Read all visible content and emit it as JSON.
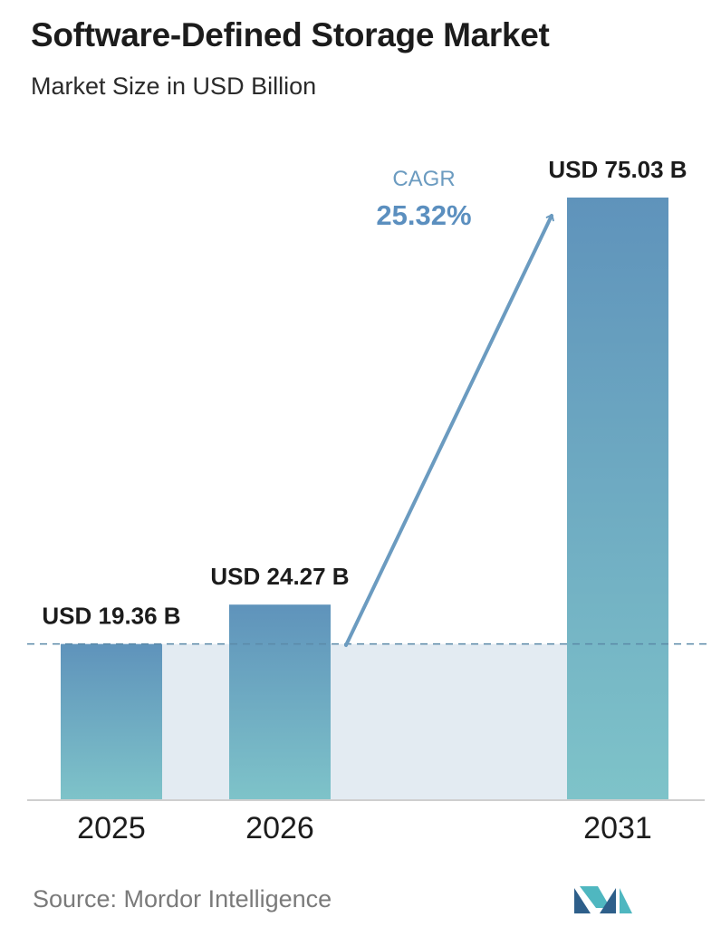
{
  "header": {
    "title": "Software-Defined Storage Market",
    "subtitle": "Market Size in USD Billion"
  },
  "chart_data": {
    "type": "bar",
    "categories": [
      "2025",
      "2026",
      "2031"
    ],
    "values": [
      19.36,
      24.27,
      75.03
    ],
    "value_labels": [
      "USD 19.36 B",
      "USD 24.27 B",
      "USD 75.03 B"
    ],
    "title": "Software-Defined Storage Market",
    "subtitle": "Market Size in USD Billion",
    "xlabel": "",
    "ylabel": "",
    "ylim": [
      0,
      75.03
    ],
    "grid": false,
    "legend": "none",
    "annotation": {
      "label": "CAGR",
      "value": "25.32%"
    },
    "colors": {
      "bar_top": "#5f93bb",
      "bar_bottom": "#7ec3c9",
      "band": "#e3ebf2",
      "arrow": "#6b9bc0",
      "cagr_label": "#6b9bc0",
      "cagr_value": "#5b8fbf",
      "baseline_dash": "#5b8aa8",
      "axis": "#cfcfcf"
    }
  },
  "footer": {
    "source": "Source:  Mordor Intelligence",
    "logo_icon": "mordor-intelligence-logo-icon"
  }
}
